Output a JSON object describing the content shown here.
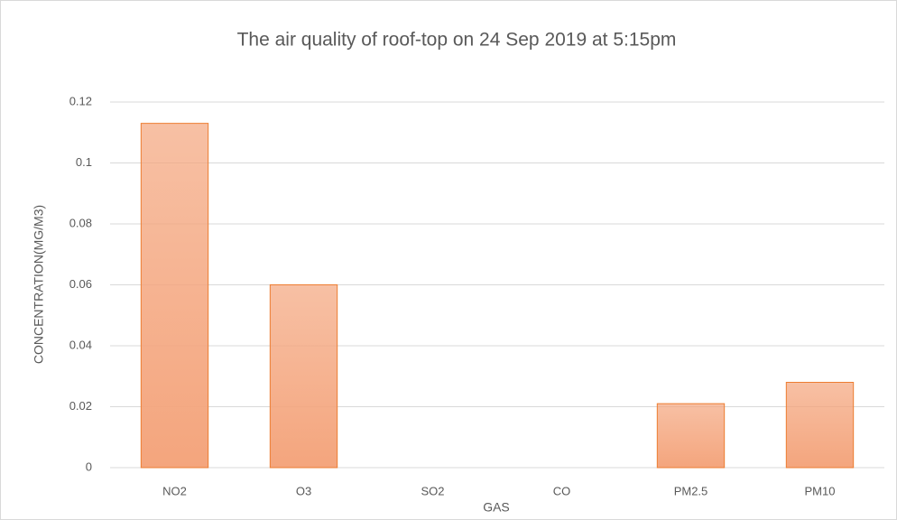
{
  "chart_data": {
    "type": "bar",
    "title": "The air quality of roof-top on 24 Sep 2019 at 5:15pm",
    "x_label": "GAS",
    "y_label": "CONCENTRATION(MG/M3)",
    "categories": [
      "NO2",
      "O3",
      "SO2",
      "CO",
      "PM2.5",
      "PM10"
    ],
    "values": [
      0.113,
      0.06,
      0,
      0,
      0.021,
      0.028
    ],
    "color": "#f4a57d",
    "edge_color": "#ed7d31",
    "ylim": [
      0,
      0.12
    ],
    "yticks": [
      0,
      0.02,
      0.04,
      0.06,
      0.08,
      0.1,
      0.12
    ],
    "grid": true
  }
}
